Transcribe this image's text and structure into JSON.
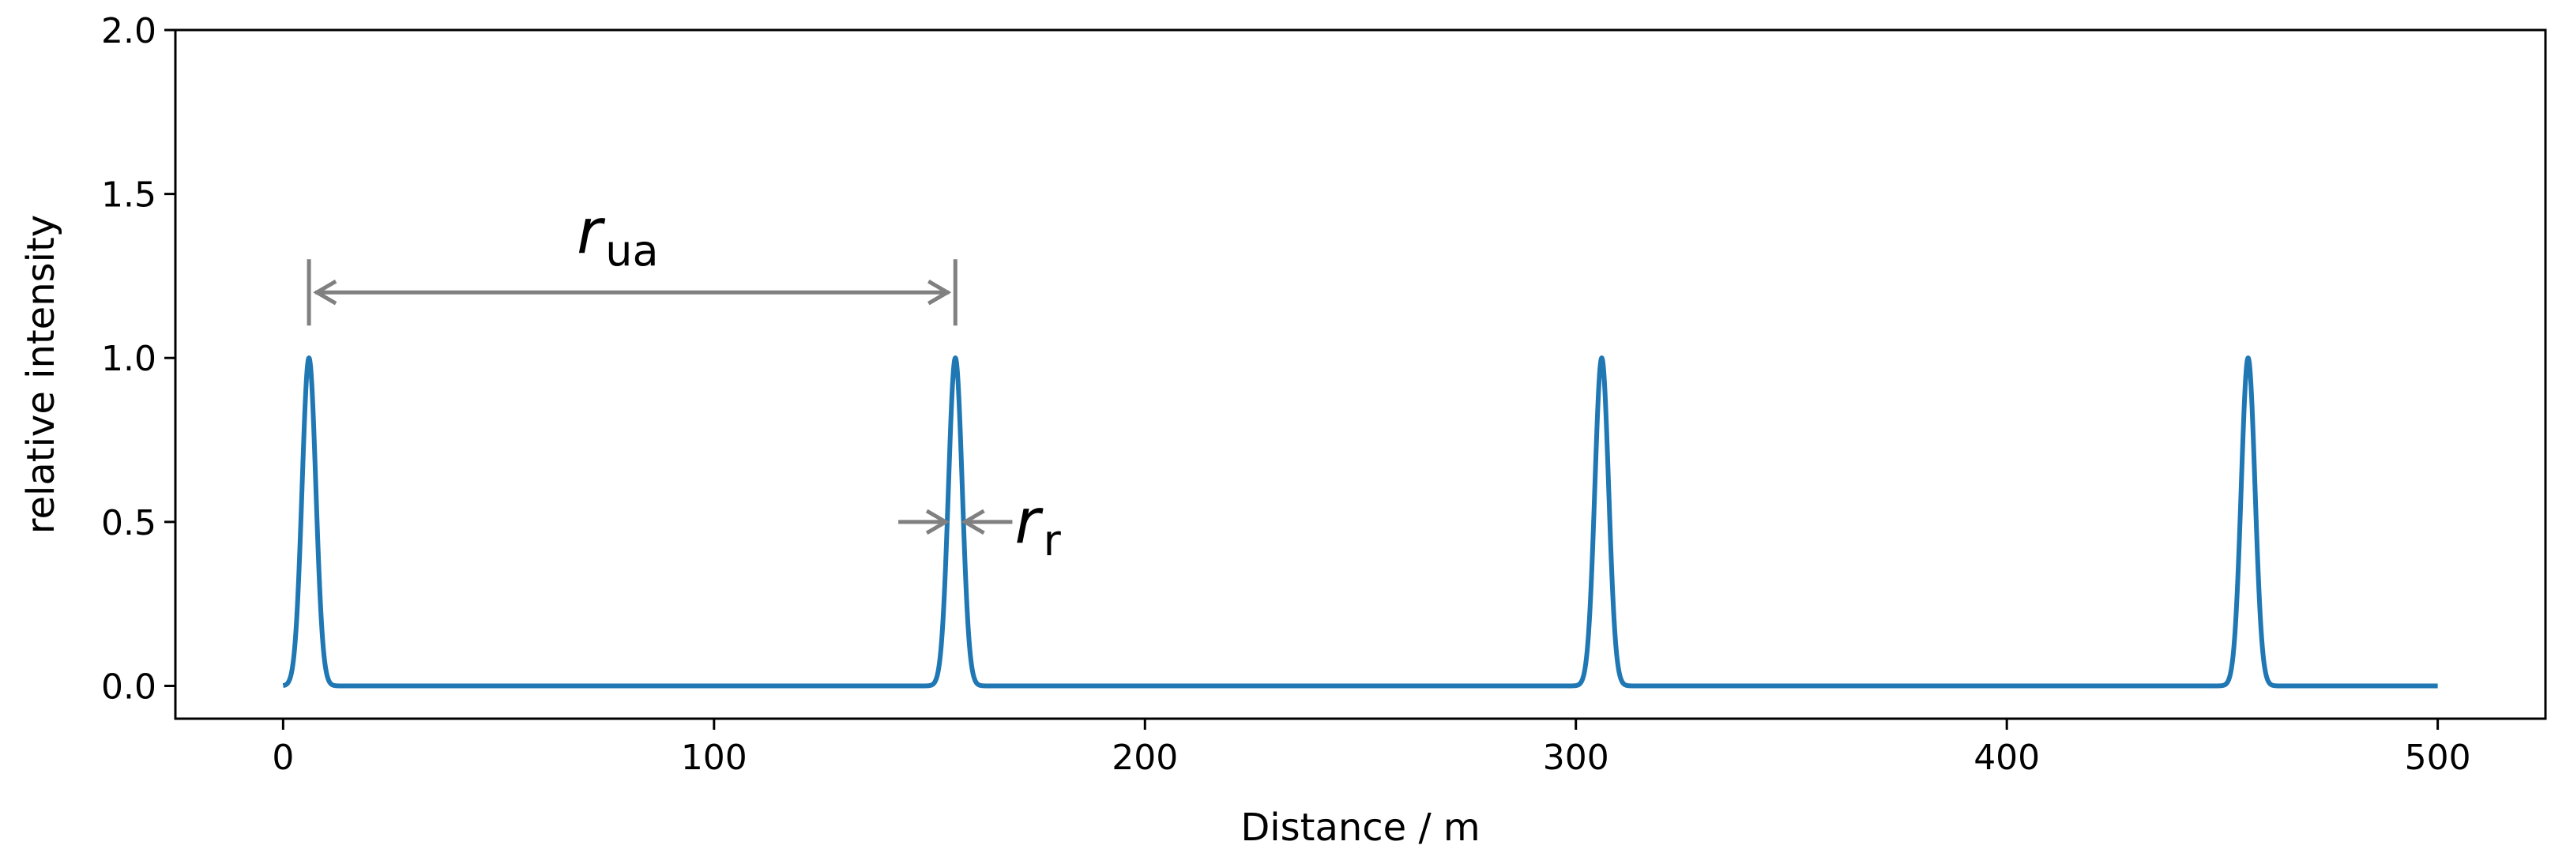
{
  "chart_data": {
    "type": "line",
    "title": "",
    "xlabel": "Distance / m",
    "ylabel": "relative intensity",
    "xlim": [
      -25,
      525
    ],
    "ylim": [
      -0.1,
      2.0
    ],
    "xticks": [
      0,
      100,
      200,
      300,
      400,
      500
    ],
    "xtick_labels": [
      "0",
      "100",
      "200",
      "300",
      "400",
      "500"
    ],
    "yticks": [
      0.0,
      0.5,
      1.0,
      1.5,
      2.0
    ],
    "ytick_labels": [
      "0.0",
      "0.5",
      "1.0",
      "1.5",
      "2.0"
    ],
    "grid": false,
    "series": [
      {
        "color": "#1f77b4",
        "x_range": [
          0,
          500
        ],
        "peaks_x": [
          6,
          156,
          306,
          456
        ],
        "peak_height": 1.0,
        "peak_sigma": 1.6,
        "baseline": 0.0
      }
    ],
    "annotations": [
      {
        "type": "distance",
        "label_main": "r",
        "label_sub": "ua",
        "x_start": 6,
        "x_end": 156,
        "y": 1.2,
        "label_x": 81,
        "label_y": 1.33,
        "color": "#808080"
      },
      {
        "type": "width",
        "label_main": "r",
        "label_sub": "r",
        "x_left": 154.5,
        "x_right": 157.5,
        "y": 0.5,
        "label_x": 172,
        "label_y": 0.5,
        "color": "#808080"
      }
    ]
  }
}
